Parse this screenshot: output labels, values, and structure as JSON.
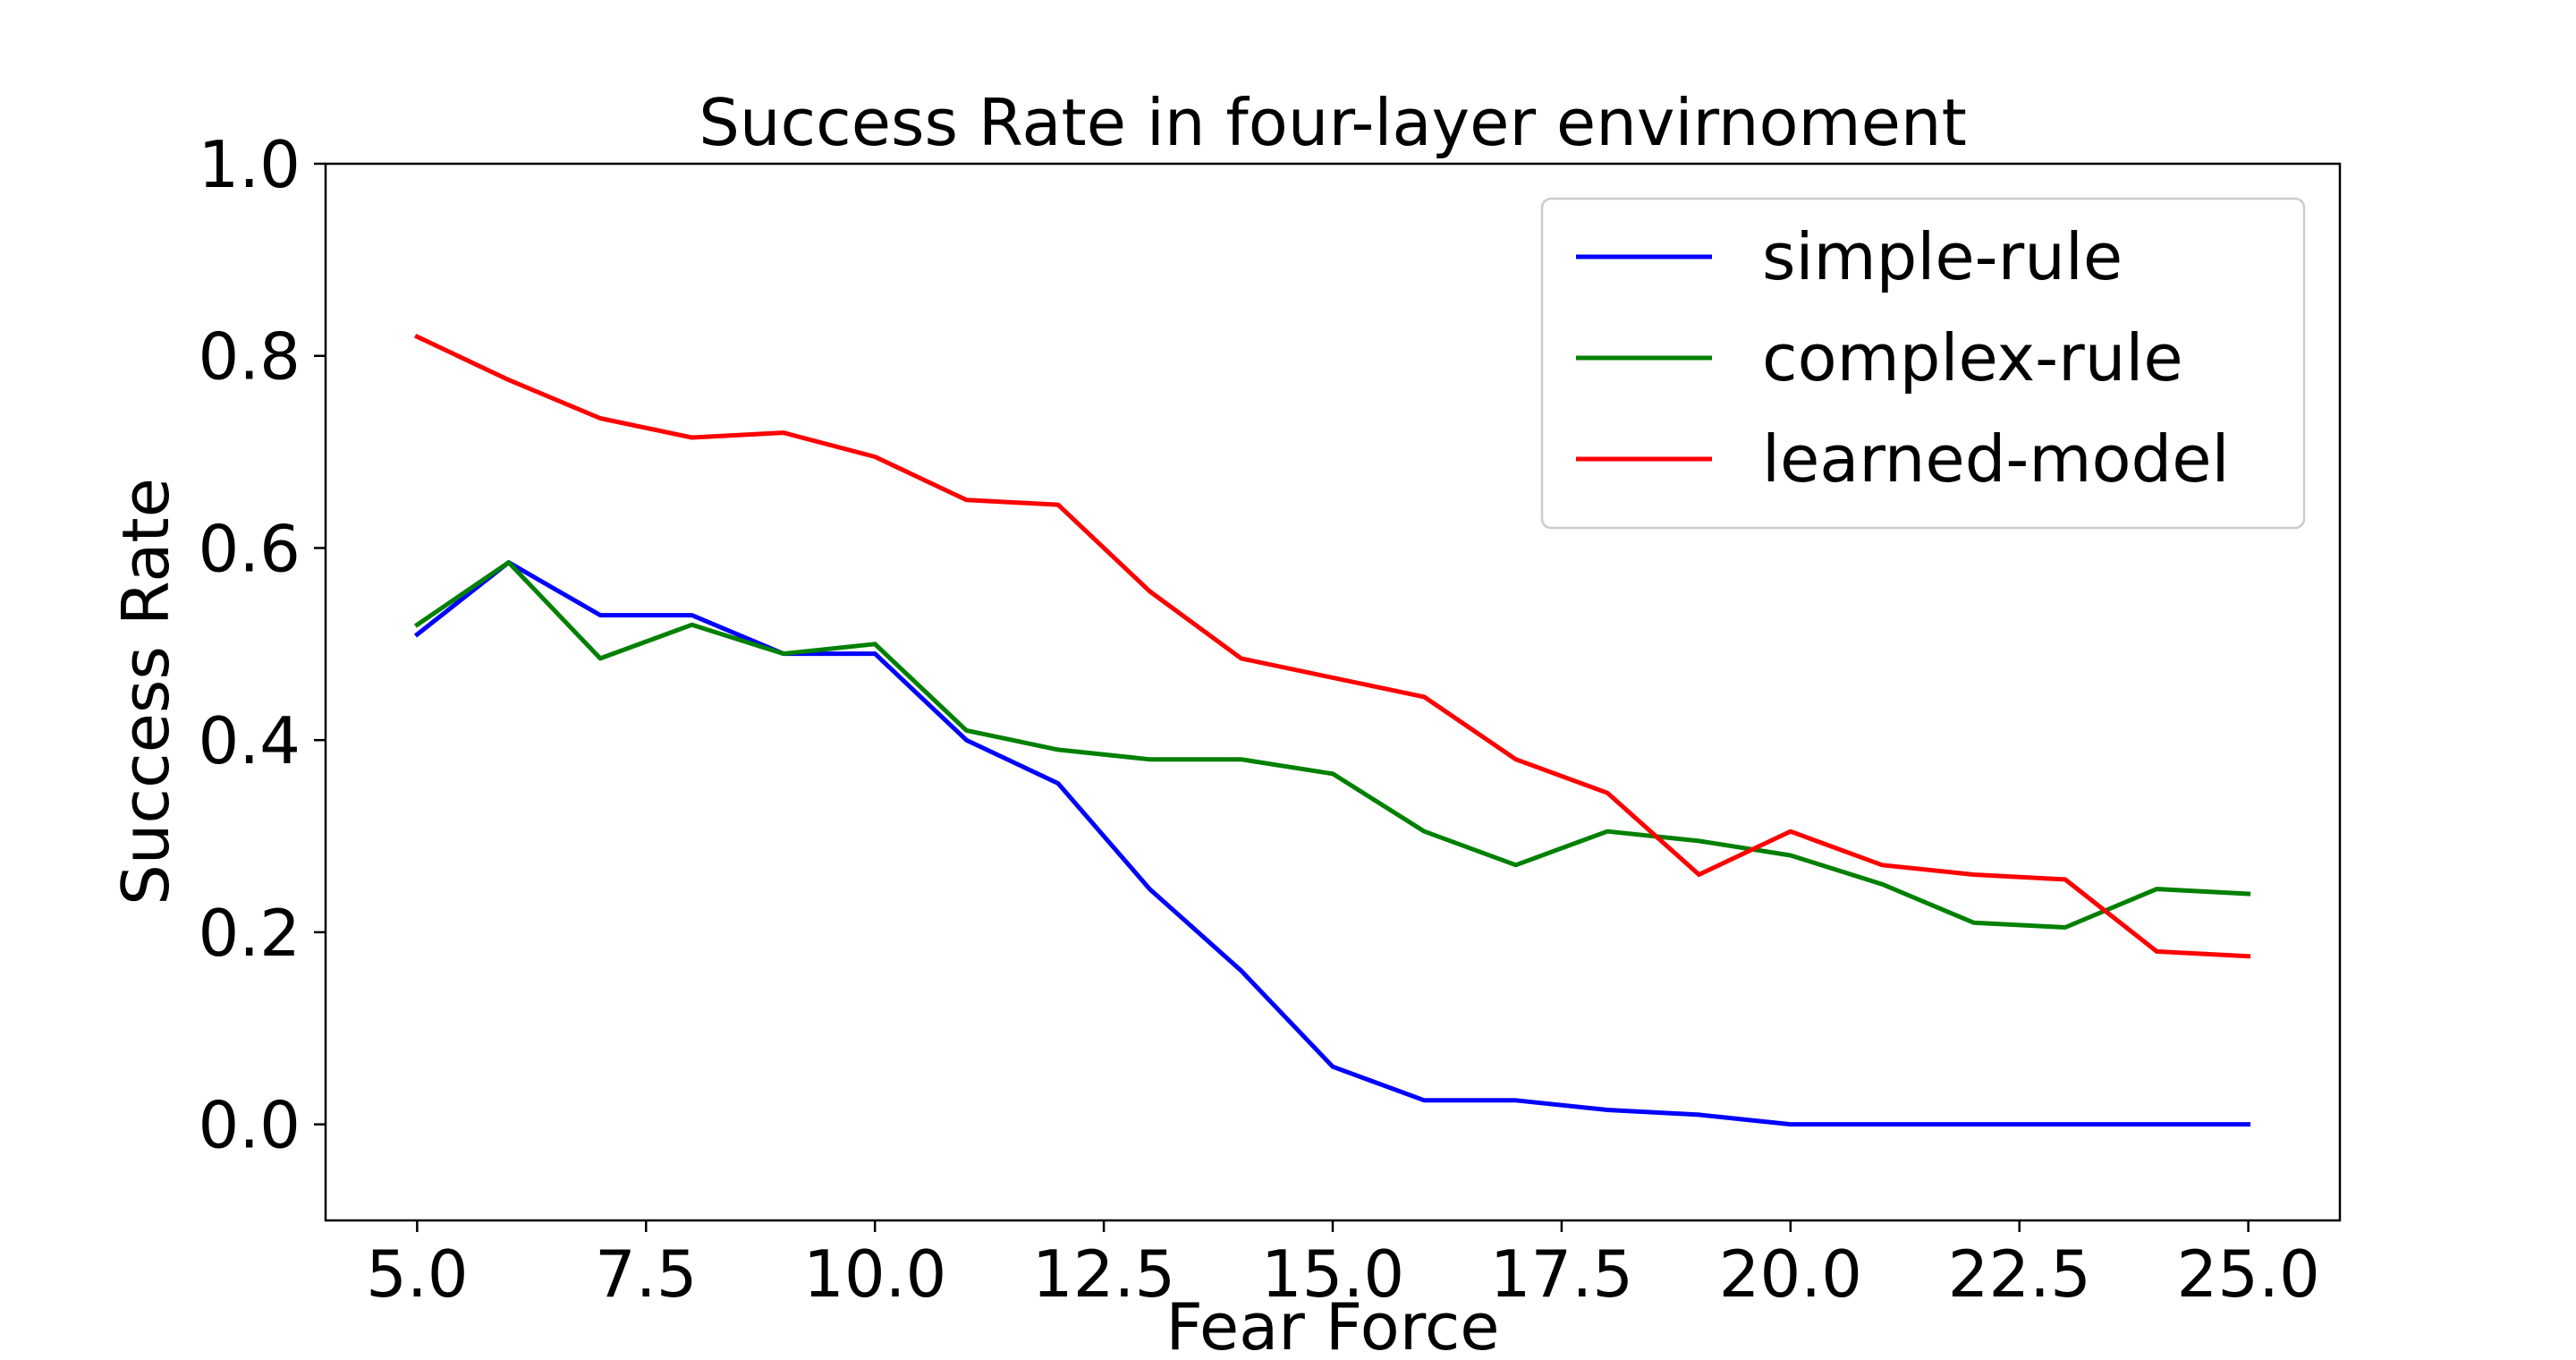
{
  "chart_data": {
    "type": "line",
    "title": "Success Rate in four-layer envirnoment",
    "xlabel": "Fear Force",
    "ylabel": "Success Rate",
    "xlim": [
      4.0,
      26.0
    ],
    "ylim": [
      -0.1,
      1.0
    ],
    "x_ticks": [
      "5.0",
      "7.5",
      "10.0",
      "12.5",
      "15.0",
      "17.5",
      "20.0",
      "22.5",
      "25.0"
    ],
    "y_ticks": [
      "0.0",
      "0.2",
      "0.4",
      "0.6",
      "0.8",
      "1.0"
    ],
    "grid": false,
    "legend_position": "top-right",
    "x": [
      5,
      6,
      7,
      8,
      9,
      10,
      11,
      12,
      13,
      14,
      15,
      16,
      17,
      18,
      19,
      20,
      21,
      22,
      23,
      24,
      25
    ],
    "series": [
      {
        "name": "simple-rule",
        "color": "#0000ff",
        "values": [
          0.51,
          0.585,
          0.53,
          0.53,
          0.49,
          0.49,
          0.4,
          0.355,
          0.245,
          0.16,
          0.06,
          0.025,
          0.025,
          0.015,
          0.01,
          0.0,
          0.0,
          0.0,
          0.0,
          0.0,
          0.0
        ]
      },
      {
        "name": "complex-rule",
        "color": "#008000",
        "values": [
          0.52,
          0.585,
          0.485,
          0.52,
          0.49,
          0.5,
          0.41,
          0.39,
          0.38,
          0.38,
          0.365,
          0.305,
          0.27,
          0.305,
          0.295,
          0.28,
          0.25,
          0.21,
          0.205,
          0.245,
          0.24
        ]
      },
      {
        "name": "learned-model",
        "color": "#ff0000",
        "values": [
          0.82,
          0.775,
          0.735,
          0.715,
          0.72,
          0.695,
          0.65,
          0.645,
          0.555,
          0.485,
          0.465,
          0.445,
          0.38,
          0.345,
          0.26,
          0.305,
          0.27,
          0.26,
          0.255,
          0.18,
          0.175
        ]
      }
    ]
  }
}
